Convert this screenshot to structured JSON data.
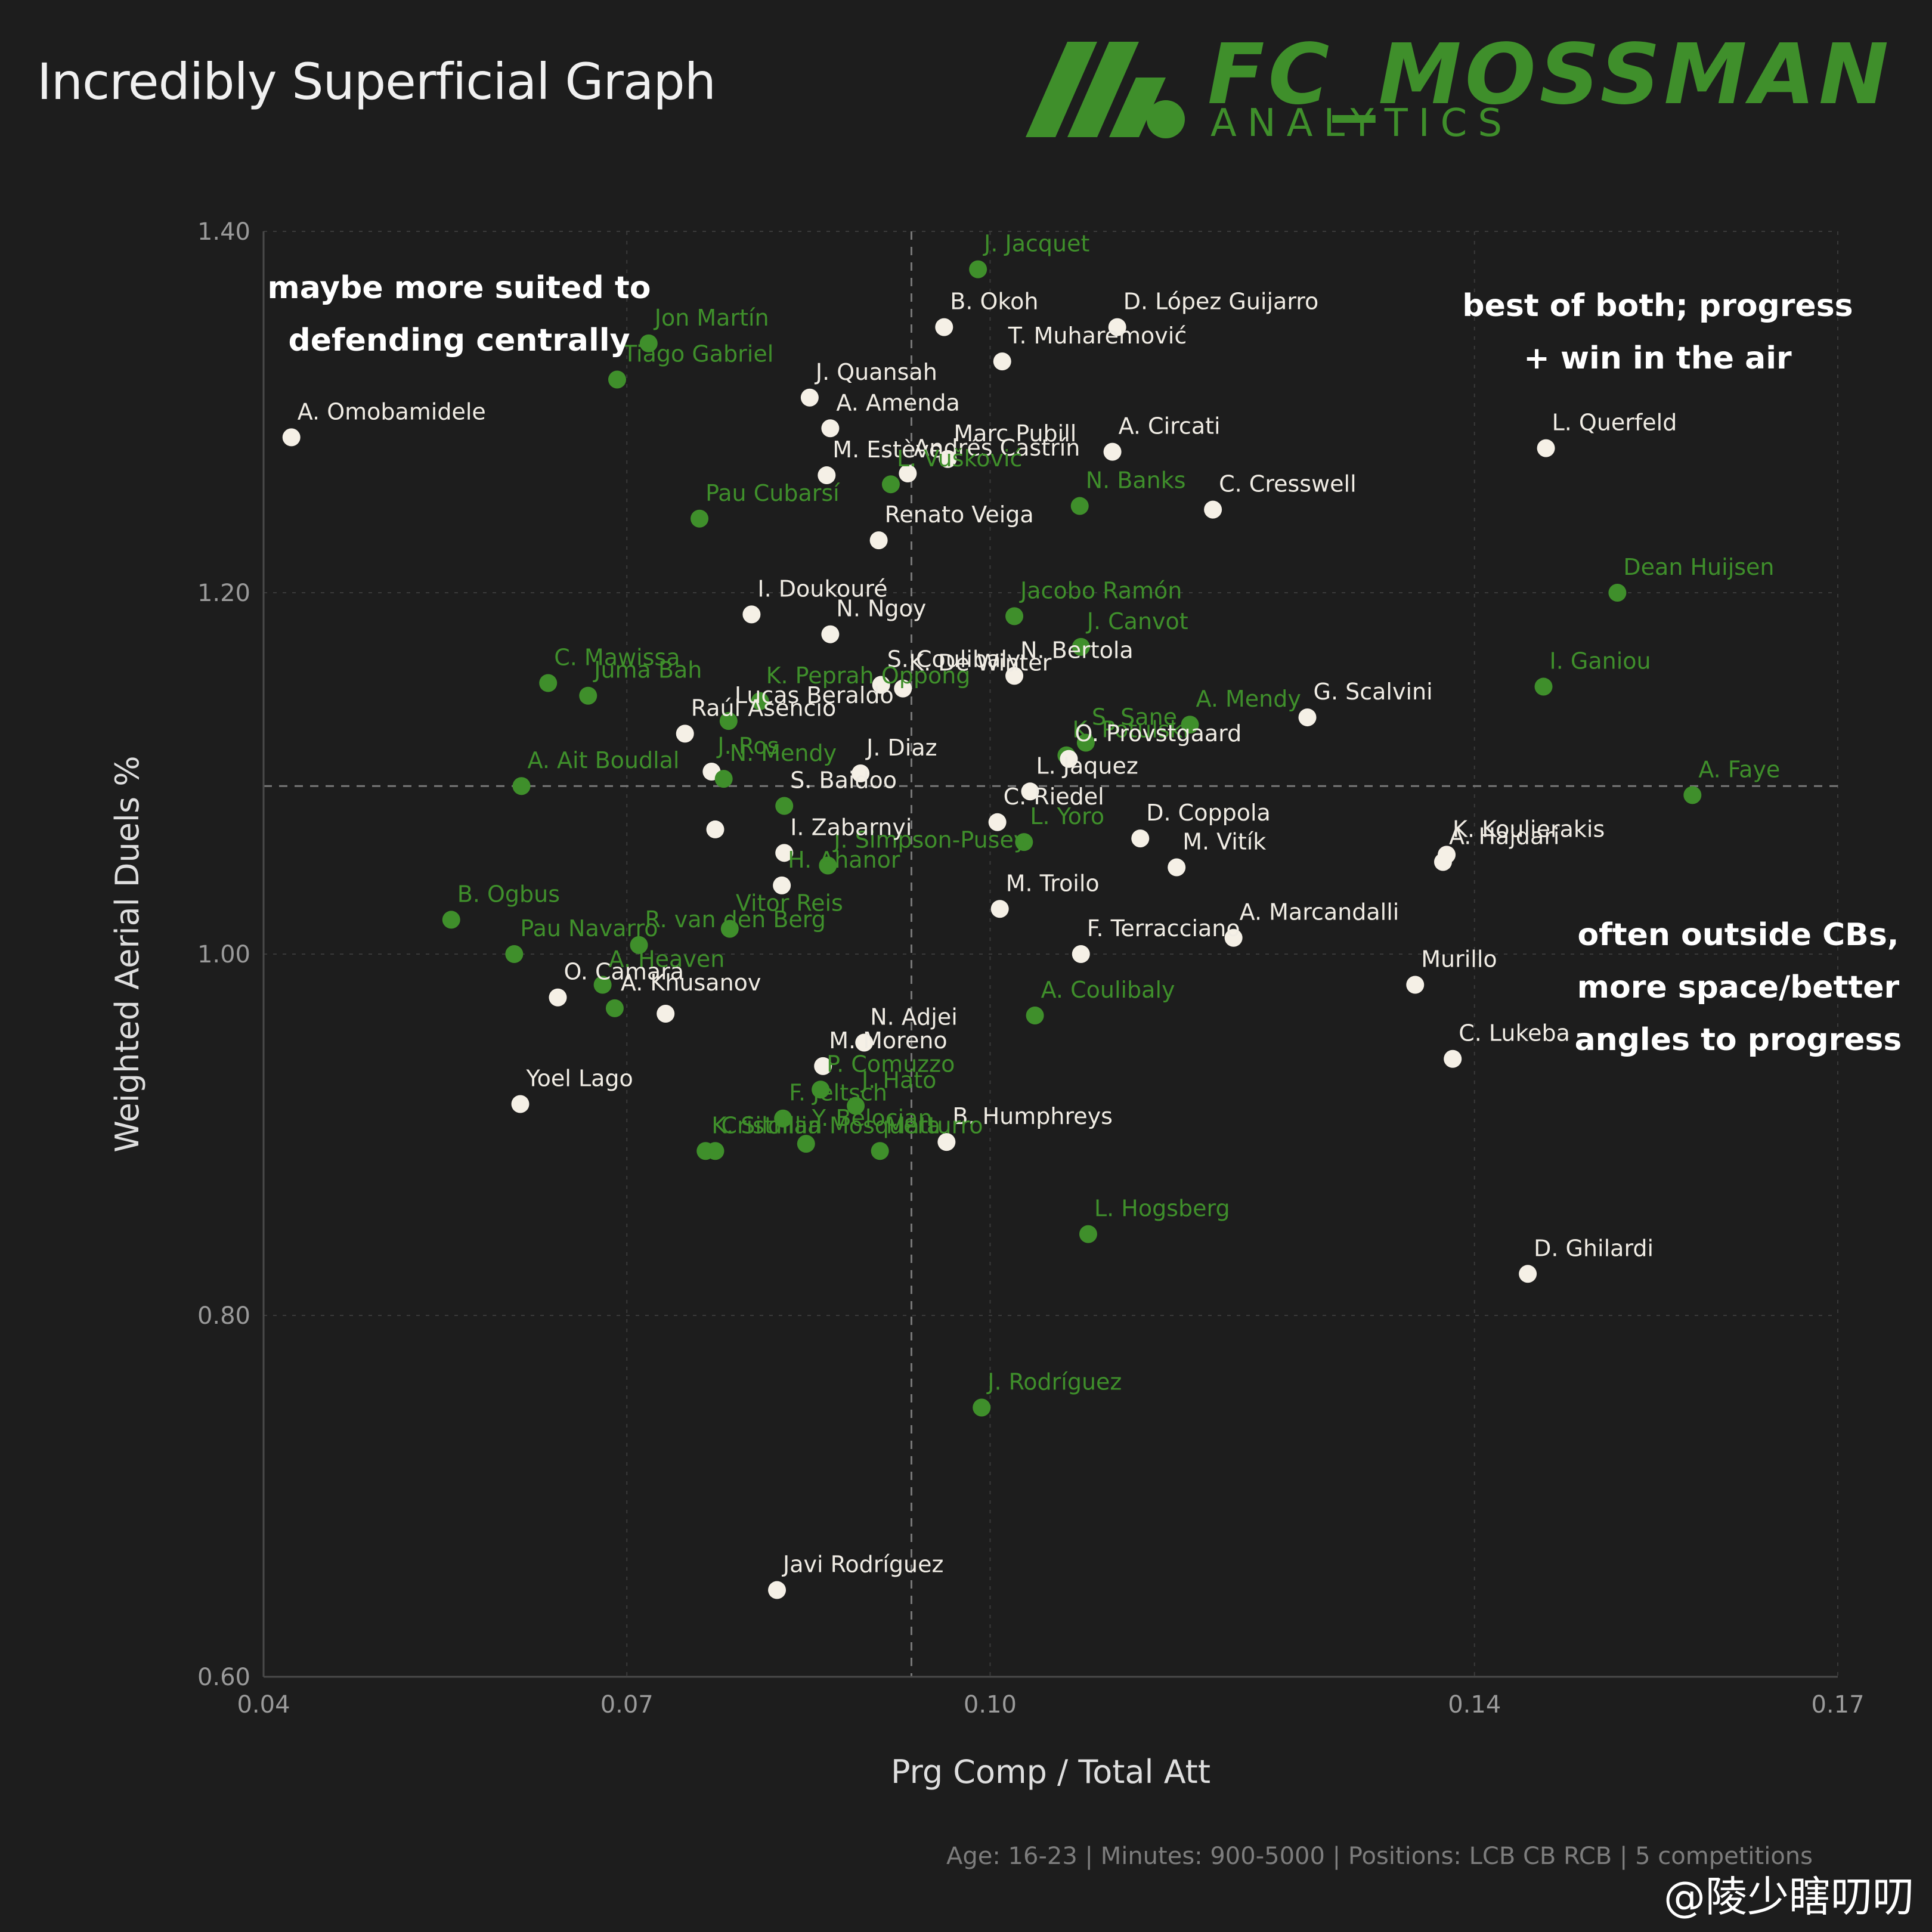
{
  "title": "Incredibly Superficial Graph",
  "brand": {
    "name": "FC_MOSSMAN",
    "sub": "ANALYTICS"
  },
  "footer": "Age: 16-23 | Minutes: 900-5000 | Positions: LCB CB RCB | 5 competitions",
  "watermark": "@陵少瞎叨叨",
  "annotations": [
    {
      "lines": [
        "maybe more suited to",
        "defending centrally"
      ]
    },
    {
      "lines": [
        "best of both; progress",
        "+ win in the air"
      ]
    },
    {
      "lines": [
        "often outside CBs,",
        "more space/better",
        "angles to progress"
      ]
    }
  ],
  "colors": {
    "highlight": "#3f8f2b",
    "default": "#f5f0e6",
    "background": "#1d1d1d"
  },
  "chart_data": {
    "type": "scatter",
    "title": "Incredibly Superficial Graph",
    "xlabel": "Prg Comp / Total Att",
    "ylabel": "Weighted Aerial Duels %",
    "xlim": [
      0.04,
      0.17
    ],
    "ylim": [
      0.6,
      1.4
    ],
    "xticks": [
      "0.04",
      "0.07",
      "0.10",
      "0.14",
      "0.17"
    ],
    "yticks": [
      "0.60",
      "0.80",
      "1.00",
      "1.20",
      "1.40"
    ],
    "median_x": 0.0935,
    "median_y": 1.093,
    "points": [
      {
        "name": "J. Jacquet",
        "x": 0.099,
        "y": 1.379,
        "hl": true
      },
      {
        "name": "B. Okoh",
        "x": 0.0962,
        "y": 1.347,
        "hl": false
      },
      {
        "name": "D. López Guijarro",
        "x": 0.1105,
        "y": 1.347,
        "hl": false
      },
      {
        "name": "T. Muharemović",
        "x": 0.101,
        "y": 1.328,
        "hl": false
      },
      {
        "name": "Jon Martín",
        "x": 0.0718,
        "y": 1.338,
        "hl": true
      },
      {
        "name": "Tiago Gabriel",
        "x": 0.0692,
        "y": 1.318,
        "hl": true
      },
      {
        "name": "A. Omobamidele",
        "x": 0.0423,
        "y": 1.286,
        "hl": false
      },
      {
        "name": "J. Quansah",
        "x": 0.0851,
        "y": 1.308,
        "hl": false
      },
      {
        "name": "A. Amenda",
        "x": 0.0868,
        "y": 1.291,
        "hl": false
      },
      {
        "name": "Marc Pubill",
        "x": 0.0965,
        "y": 1.274,
        "hl": false
      },
      {
        "name": "A. Circati",
        "x": 0.1101,
        "y": 1.278,
        "hl": false
      },
      {
        "name": "M. Estève",
        "x": 0.0865,
        "y": 1.265,
        "hl": false
      },
      {
        "name": "Andrés Castrín",
        "x": 0.0932,
        "y": 1.266,
        "hl": false
      },
      {
        "name": "L. Vušković",
        "x": 0.0918,
        "y": 1.26,
        "hl": true
      },
      {
        "name": "L. Querfeld",
        "x": 0.1459,
        "y": 1.28,
        "hl": false
      },
      {
        "name": "N. Banks",
        "x": 0.1074,
        "y": 1.248,
        "hl": true
      },
      {
        "name": "C. Cresswell",
        "x": 0.1184,
        "y": 1.246,
        "hl": false
      },
      {
        "name": "Pau Cubarsí",
        "x": 0.076,
        "y": 1.241,
        "hl": true
      },
      {
        "name": "Renato Veiga",
        "x": 0.0908,
        "y": 1.229,
        "hl": false
      },
      {
        "name": "Dean Huijsen",
        "x": 0.1518,
        "y": 1.2,
        "hl": true
      },
      {
        "name": "I. Doukouré",
        "x": 0.0803,
        "y": 1.188,
        "hl": false
      },
      {
        "name": "Jacobo Ramón",
        "x": 0.102,
        "y": 1.187,
        "hl": true
      },
      {
        "name": "N. Ngoy",
        "x": 0.0868,
        "y": 1.177,
        "hl": false
      },
      {
        "name": "J. Canvot",
        "x": 0.1075,
        "y": 1.17,
        "hl": true
      },
      {
        "name": "N. Bertola",
        "x": 0.102,
        "y": 1.154,
        "hl": false
      },
      {
        "name": "I. Ganiou",
        "x": 0.1457,
        "y": 1.148,
        "hl": true
      },
      {
        "name": "S. Coulibaly",
        "x": 0.091,
        "y": 1.149,
        "hl": false
      },
      {
        "name": "K. De Winter",
        "x": 0.0928,
        "y": 1.147,
        "hl": false
      },
      {
        "name": "C. Mawissa",
        "x": 0.0635,
        "y": 1.15,
        "hl": true
      },
      {
        "name": "Juma Bah",
        "x": 0.0668,
        "y": 1.143,
        "hl": true
      },
      {
        "name": "K. Peprah Oppong",
        "x": 0.081,
        "y": 1.14,
        "hl": true
      },
      {
        "name": "G. Scalvini",
        "x": 0.1262,
        "y": 1.131,
        "hl": false
      },
      {
        "name": "A. Mendy",
        "x": 0.1165,
        "y": 1.127,
        "hl": true
      },
      {
        "name": "Raúl Asencio",
        "x": 0.0748,
        "y": 1.122,
        "hl": false
      },
      {
        "name": "Lucas Beraldo",
        "x": 0.0784,
        "y": 1.129,
        "hl": true
      },
      {
        "name": "S. Sane",
        "x": 0.1079,
        "y": 1.117,
        "hl": true
      },
      {
        "name": "K. Potulski",
        "x": 0.1063,
        "y": 1.11,
        "hl": true
      },
      {
        "name": "A. Faye",
        "x": 0.158,
        "y": 1.088,
        "hl": true
      },
      {
        "name": "A. Ait Boudlal",
        "x": 0.0613,
        "y": 1.093,
        "hl": true
      },
      {
        "name": "J. Diaz",
        "x": 0.0893,
        "y": 1.1,
        "hl": false
      },
      {
        "name": "O. Provstgaard",
        "x": 0.1065,
        "y": 1.108,
        "hl": false
      },
      {
        "name": "J. Ros",
        "x": 0.077,
        "y": 1.101,
        "hl": false
      },
      {
        "name": "N. Mendy",
        "x": 0.078,
        "y": 1.097,
        "hl": true
      },
      {
        "name": "L. Jaquez",
        "x": 0.1033,
        "y": 1.09,
        "hl": false
      },
      {
        "name": "S. Baidoo",
        "x": 0.083,
        "y": 1.082,
        "hl": true
      },
      {
        "name": "C. Riedel",
        "x": 0.1006,
        "y": 1.073,
        "hl": false
      },
      {
        "name": "L. Yoro",
        "x": 0.1028,
        "y": 1.062,
        "hl": true
      },
      {
        "name": "D. Coppola",
        "x": 0.1124,
        "y": 1.064,
        "hl": false
      },
      {
        "name": "K. Koulierakis",
        "x": 0.1377,
        "y": 1.055,
        "hl": false
      },
      {
        "name": "A. Hajdari",
        "x": 0.1374,
        "y": 1.051,
        "hl": false
      },
      {
        "name": "J. Simpson-Pusey",
        "x": 0.0866,
        "y": 1.049,
        "hl": true
      },
      {
        "name": "M. Vitík",
        "x": 0.1154,
        "y": 1.048,
        "hl": false
      },
      {
        "name": "I. Zabarnyi",
        "x": 0.083,
        "y": 1.056,
        "hl": false
      },
      {
        "name": "I. Zabarnyi",
        "x": 0.0773,
        "y": 1.069,
        "hl": false
      },
      {
        "name": "M. Troilo",
        "x": 0.1008,
        "y": 1.025,
        "hl": false
      },
      {
        "name": "H. Ahanor",
        "x": 0.0828,
        "y": 1.038,
        "hl": false
      },
      {
        "name": "B. Ogbus",
        "x": 0.0555,
        "y": 1.019,
        "hl": true
      },
      {
        "name": "Vitor Reis",
        "x": 0.0785,
        "y": 1.014,
        "hl": true
      },
      {
        "name": "A. Marcandalli",
        "x": 0.1201,
        "y": 1.009,
        "hl": false
      },
      {
        "name": "Pau Navarro",
        "x": 0.0607,
        "y": 1.0,
        "hl": true
      },
      {
        "name": "R. van den Berg",
        "x": 0.071,
        "y": 1.005,
        "hl": true
      },
      {
        "name": "F. Terracciano",
        "x": 0.1075,
        "y": 1.0,
        "hl": false
      },
      {
        "name": "Murillo",
        "x": 0.1351,
        "y": 0.983,
        "hl": false
      },
      {
        "name": "O. Camara",
        "x": 0.0643,
        "y": 0.976,
        "hl": false
      },
      {
        "name": "A. Heaven",
        "x": 0.068,
        "y": 0.983,
        "hl": true
      },
      {
        "name": "A. Khusanov",
        "x": 0.069,
        "y": 0.97,
        "hl": true
      },
      {
        "name": "A. Khusanov",
        "x": 0.0732,
        "y": 0.967,
        "hl": false
      },
      {
        "name": "A. Coulibaly",
        "x": 0.1037,
        "y": 0.966,
        "hl": true
      },
      {
        "name": "N. Adjei",
        "x": 0.0896,
        "y": 0.951,
        "hl": false
      },
      {
        "name": "C. Lukeba",
        "x": 0.1382,
        "y": 0.942,
        "hl": false
      },
      {
        "name": "M. Moreno",
        "x": 0.0862,
        "y": 0.938,
        "hl": false
      },
      {
        "name": "P. Comuzzo",
        "x": 0.086,
        "y": 0.925,
        "hl": true
      },
      {
        "name": "J. Hato",
        "x": 0.0889,
        "y": 0.916,
        "hl": true
      },
      {
        "name": "Yoel Lago",
        "x": 0.0612,
        "y": 0.917,
        "hl": false
      },
      {
        "name": "F. Jeltsch",
        "x": 0.0829,
        "y": 0.909,
        "hl": true
      },
      {
        "name": "B. Humphreys",
        "x": 0.0964,
        "y": 0.896,
        "hl": false
      },
      {
        "name": "Cristhian Mosquera",
        "x": 0.0773,
        "y": 0.891,
        "hl": true
      },
      {
        "name": "K. Sildillia",
        "x": 0.0765,
        "y": 0.891,
        "hl": true
      },
      {
        "name": "Y. Belocian",
        "x": 0.0848,
        "y": 0.895,
        "hl": true
      },
      {
        "name": "Matturro",
        "x": 0.0909,
        "y": 0.891,
        "hl": true
      },
      {
        "name": "L. Hogsberg",
        "x": 0.1081,
        "y": 0.845,
        "hl": true
      },
      {
        "name": "D. Ghilardi",
        "x": 0.1444,
        "y": 0.823,
        "hl": false
      },
      {
        "name": "J. Rodríguez",
        "x": 0.0993,
        "y": 0.749,
        "hl": true
      },
      {
        "name": "Javi Rodríguez",
        "x": 0.0824,
        "y": 0.648,
        "hl": false
      }
    ]
  }
}
